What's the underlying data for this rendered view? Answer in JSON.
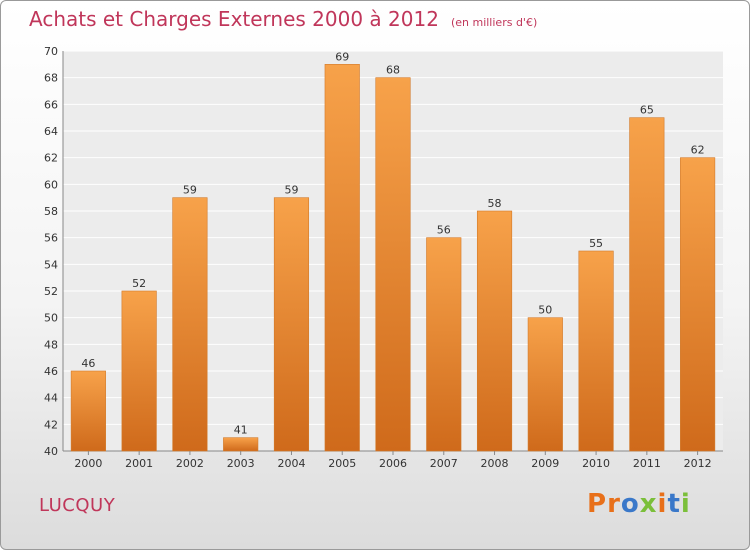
{
  "chart_data": {
    "type": "bar",
    "title": "Achats et Charges Externes 2000 à 2012",
    "subtitle": "(en milliers d'€)",
    "xlabel": "",
    "ylabel": "",
    "categories": [
      "2000",
      "2001",
      "2002",
      "2003",
      "2004",
      "2005",
      "2006",
      "2007",
      "2008",
      "2009",
      "2010",
      "2011",
      "2012"
    ],
    "values": [
      46,
      52,
      59,
      41,
      59,
      69,
      68,
      56,
      58,
      50,
      55,
      65,
      62
    ],
    "ylim": [
      40,
      70
    ],
    "yticks": [
      40,
      42,
      44,
      46,
      48,
      50,
      52,
      54,
      56,
      58,
      60,
      62,
      64,
      66,
      68,
      70
    ],
    "grid": true,
    "legend": "none",
    "bar_color_top": "#f7a24a",
    "bar_color_bottom": "#cf6a1b",
    "data_labels": true
  },
  "footer": {
    "commune": "LUCQUY",
    "logo_text": "Proxiti",
    "logo_colors": [
      "#e8701a",
      "#e8701a",
      "#3a78c9",
      "#7bbf3a",
      "#e8701a",
      "#3a78c9",
      "#7bbf3a"
    ]
  }
}
